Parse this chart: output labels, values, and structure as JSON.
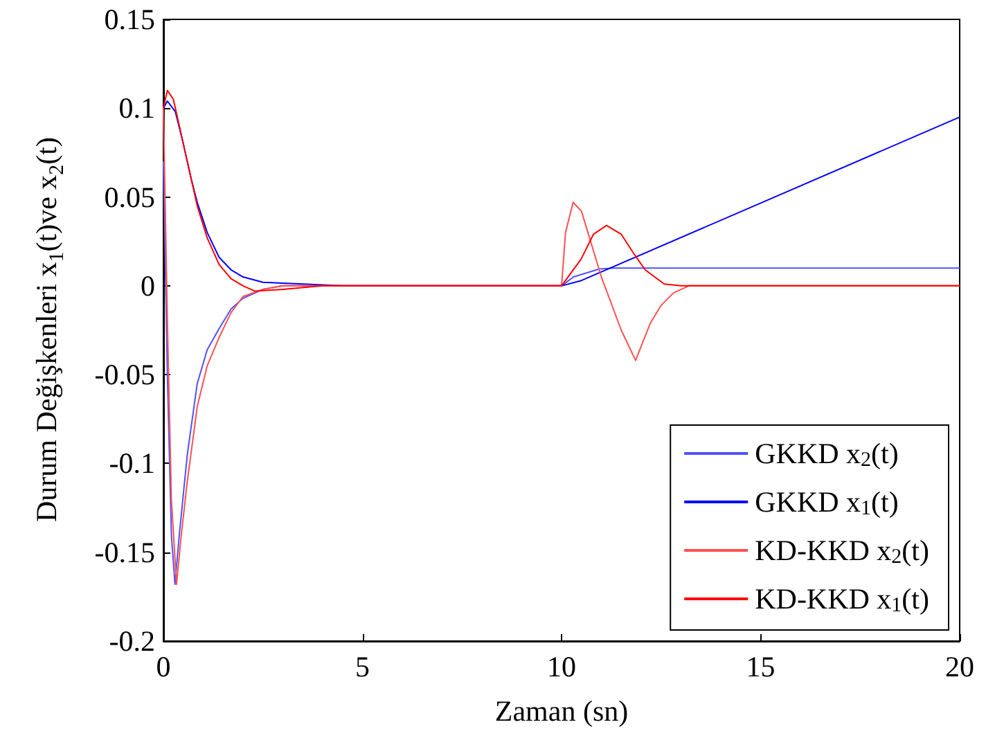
{
  "chart_data": {
    "type": "line",
    "xlabel": "Zaman (sn)",
    "ylabel": "Durum Değişkenleri x$_{1}$(t)ve x$_{2}$(t)",
    "xlim": [
      0,
      20
    ],
    "xticks": [
      0,
      5,
      10,
      15,
      20
    ],
    "ylim": [
      -0.2,
      0.15
    ],
    "yticks": [
      -0.2,
      -0.15,
      -0.1,
      -0.05,
      0,
      0.05,
      0.1,
      0.15
    ],
    "grid": false,
    "legend": "bottom right",
    "marker": "none",
    "line_style": "solid",
    "series": [
      {
        "name": "GKKD x$_{2}$(t)",
        "color": "#5050ff",
        "x": [
          0,
          0.1,
          0.2,
          0.29,
          0.4,
          0.6,
          0.85,
          1.1,
          1.4,
          1.7,
          2.0,
          2.5,
          3,
          10,
          10.3,
          10.95,
          11.3,
          20
        ],
        "values": [
          0.07,
          -0.05,
          -0.14,
          -0.168,
          -0.14,
          -0.095,
          -0.055,
          -0.036,
          -0.024,
          -0.013,
          -0.007,
          -0.002,
          0,
          0,
          0.005,
          0.0095,
          0.01,
          0.01
        ]
      },
      {
        "name": "GKKD x$_{1}$(t)",
        "color": "#0000ff",
        "x": [
          0,
          0.1,
          0.3,
          0.5,
          0.7,
          0.85,
          1.1,
          1.4,
          1.7,
          2.0,
          2.5,
          3.5,
          4.5,
          10,
          10.5,
          20
        ],
        "values": [
          0.1,
          0.104,
          0.098,
          0.08,
          0.06,
          0.047,
          0.03,
          0.016,
          0.009,
          0.005,
          0.002,
          0.001,
          0,
          0,
          0.003,
          0.095
        ]
      },
      {
        "name": "KD-KKD x$_{2}$(t)",
        "color": "#ff5050",
        "x": [
          0,
          0.1,
          0.2,
          0.33,
          0.45,
          0.6,
          0.85,
          1.1,
          1.4,
          1.7,
          2.0,
          2.5,
          3.0,
          10,
          10.1,
          10.29,
          10.5,
          11.0,
          11.5,
          11.86,
          12.0,
          12.23,
          12.5,
          12.81,
          13.2,
          20
        ],
        "values": [
          0.1,
          -0.02,
          -0.12,
          -0.168,
          -0.14,
          -0.11,
          -0.068,
          -0.045,
          -0.029,
          -0.015,
          -0.006,
          -0.002,
          0,
          0,
          0.03,
          0.047,
          0.042,
          0.005,
          -0.025,
          -0.042,
          -0.034,
          -0.021,
          -0.011,
          -0.004,
          0,
          0
        ]
      },
      {
        "name": "KD-KKD x$_{1}$(t)",
        "color": "#ff0000",
        "x": [
          0,
          0.1,
          0.25,
          0.5,
          0.7,
          0.85,
          1.1,
          1.4,
          1.7,
          2.0,
          2.3,
          3,
          4,
          10,
          10.49,
          10.8,
          11.13,
          11.5,
          11.82,
          12.1,
          12.58,
          13,
          20
        ],
        "values": [
          0.1,
          0.11,
          0.105,
          0.08,
          0.06,
          0.045,
          0.027,
          0.012,
          0.004,
          0,
          -0.003,
          -0.002,
          0,
          0,
          0.015,
          0.029,
          0.034,
          0.029,
          0.018,
          0.009,
          0.001,
          0,
          0
        ]
      }
    ]
  }
}
